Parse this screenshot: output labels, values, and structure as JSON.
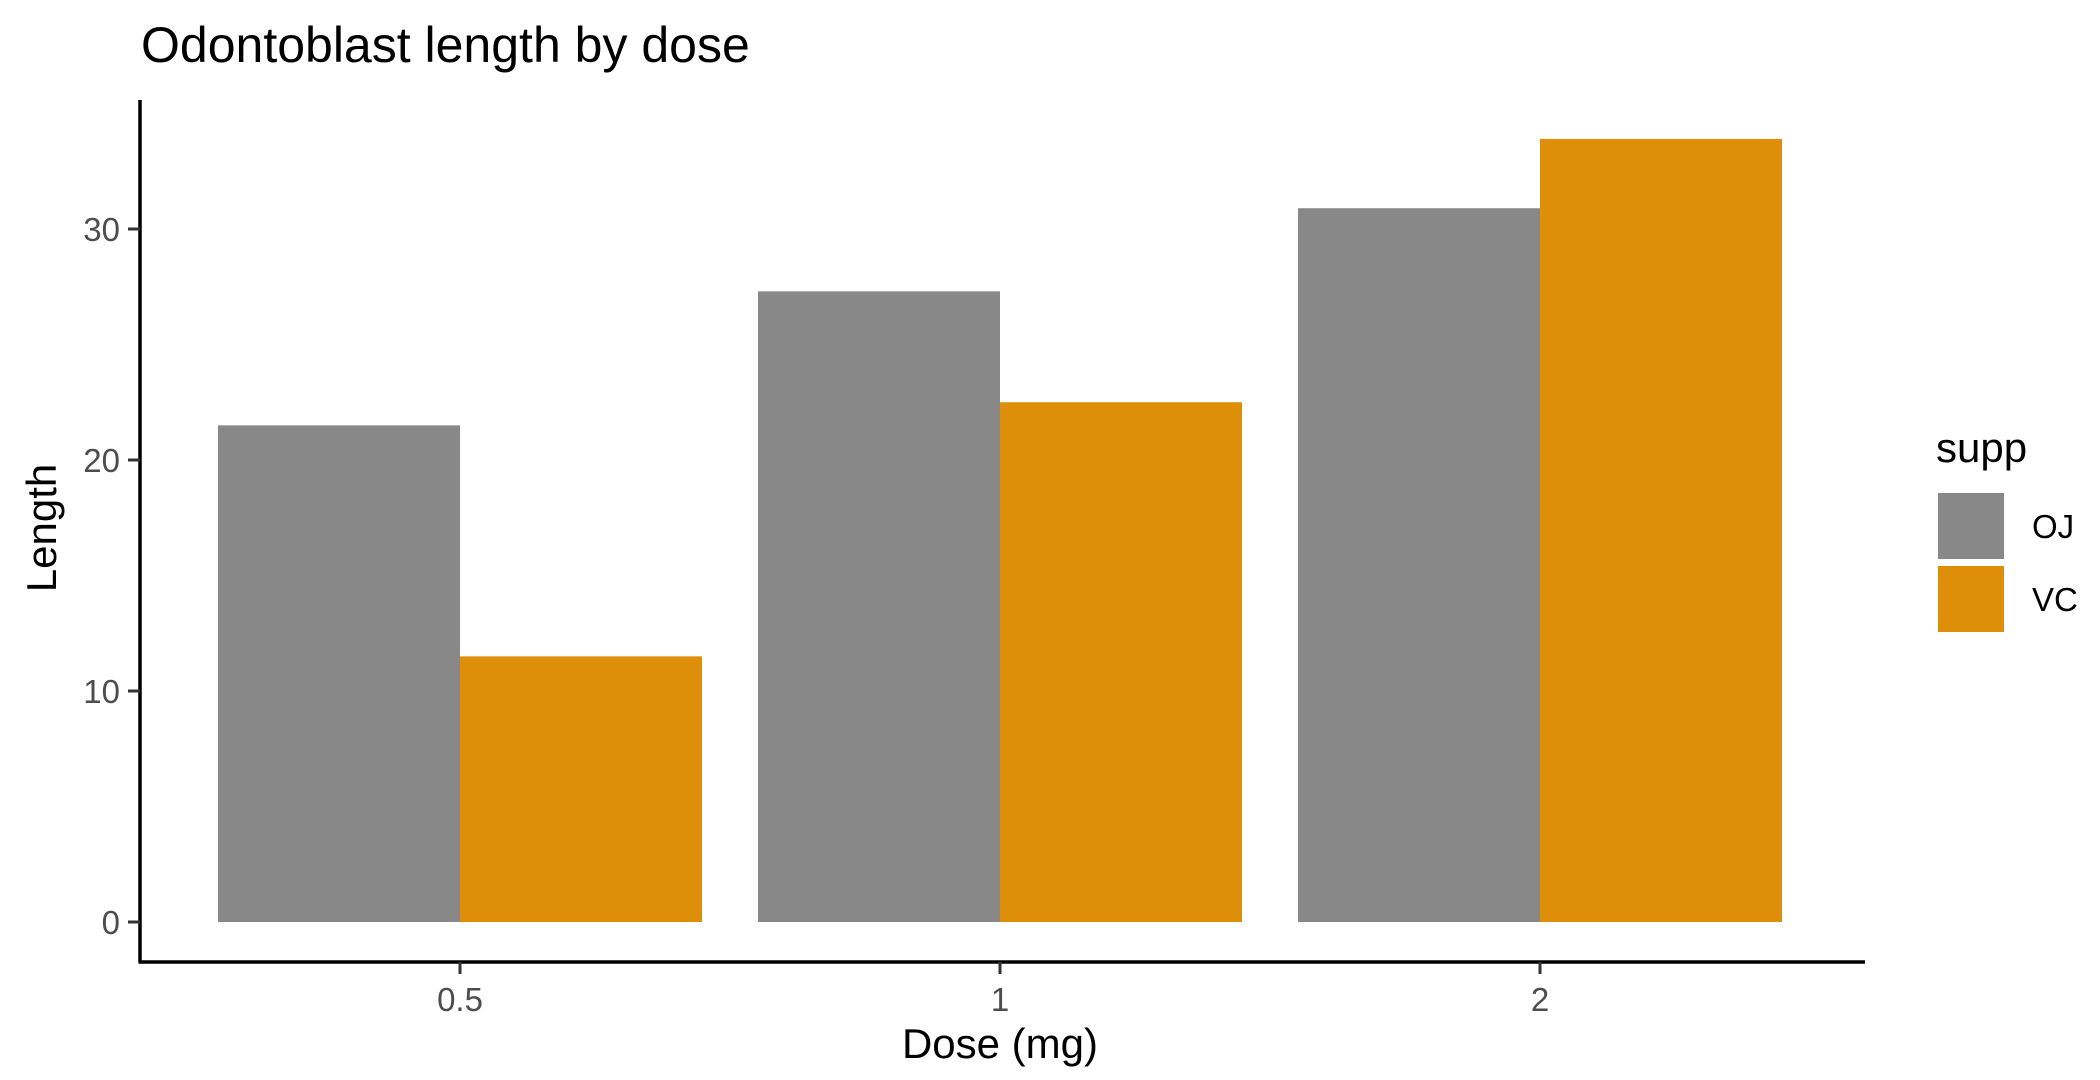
{
  "chart_data": {
    "type": "bar",
    "title": "Odontoblast length by dose",
    "xlabel": "Dose (mg)",
    "ylabel": "Length",
    "categories": [
      "0.5",
      "1",
      "2"
    ],
    "series": [
      {
        "name": "OJ",
        "values": [
          21.5,
          27.3,
          30.9
        ],
        "color": "#888888"
      },
      {
        "name": "VC",
        "values": [
          11.5,
          22.5,
          33.9
        ],
        "color": "#DF8E0A"
      }
    ],
    "yticks": [
      0,
      10,
      20,
      30
    ],
    "ylim": [
      -1.7,
      35.6
    ],
    "grid": false,
    "legend": {
      "title": "supp",
      "position": "right"
    }
  }
}
